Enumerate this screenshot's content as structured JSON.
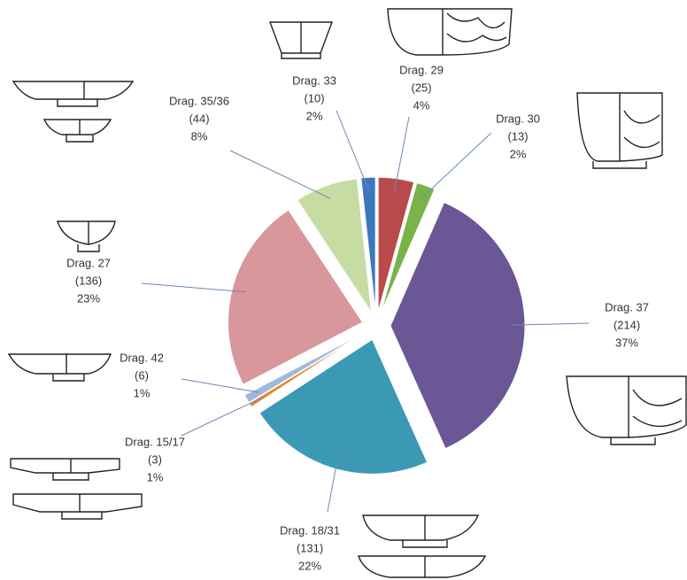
{
  "chart_data": {
    "type": "pie",
    "categories": [
      "Drag. 29",
      "Drag. 30",
      "Drag. 37",
      "Drag. 18/31",
      "Drag. 15/17",
      "Drag. 42",
      "Drag. 27",
      "Drag. 35/36",
      "Drag. 33"
    ],
    "values": [
      25,
      13,
      214,
      131,
      3,
      6,
      136,
      44,
      10
    ],
    "value_labels": [
      "(25)",
      "(13)",
      "(214)",
      "(131)",
      "(3)",
      "(6)",
      "(136)",
      "(44)",
      "(10)"
    ],
    "percent_labels": [
      "4%",
      "2%",
      "37%",
      "22%",
      "1%",
      "1%",
      "23%",
      "8%",
      "2%"
    ],
    "colors": [
      "#b94a4a",
      "#7ab34a",
      "#6b5696",
      "#3b99b5",
      "#e0862e",
      "#9fb8e0",
      "#d8979b",
      "#c6dca3",
      "#3d77bd"
    ]
  }
}
